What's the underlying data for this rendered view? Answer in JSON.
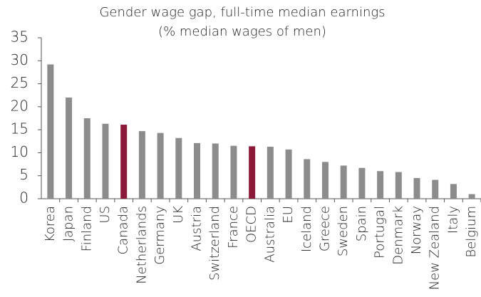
{
  "chart_data": {
    "type": "bar",
    "title": "Gender wage gap, full-time median earnings",
    "subtitle": "(% median wages of men)",
    "categories": [
      "Korea",
      "Japan",
      "Finland",
      "US",
      "Canada",
      "Netherlands",
      "Germany",
      "UK",
      "Austria",
      "Switzerland",
      "France",
      "OECD",
      "Australia",
      "EU",
      "Iceland",
      "Greece",
      "Sweden",
      "Spain",
      "Portugal",
      "Denmark",
      "Norway",
      "New Zealand",
      "Italy",
      "Belgium"
    ],
    "values": [
      29.2,
      22,
      17.5,
      16.3,
      16.1,
      14.7,
      14.3,
      13.2,
      12.1,
      12,
      11.5,
      11.4,
      11.3,
      10.7,
      8.6,
      8,
      7.2,
      6.7,
      6,
      5.8,
      4.5,
      4.1,
      3.2,
      1
    ],
    "colors": [
      "#8c8c8c",
      "#8c8c8c",
      "#8c8c8c",
      "#8c8c8c",
      "#8b1a3a",
      "#8c8c8c",
      "#8c8c8c",
      "#8c8c8c",
      "#8c8c8c",
      "#8c8c8c",
      "#8c8c8c",
      "#8b1a3a",
      "#8c8c8c",
      "#8c8c8c",
      "#8c8c8c",
      "#8c8c8c",
      "#8c8c8c",
      "#8c8c8c",
      "#8c8c8c",
      "#8c8c8c",
      "#8c8c8c",
      "#8c8c8c",
      "#8c8c8c",
      "#8c8c8c"
    ],
    "ylim": [
      0,
      35
    ],
    "yticks": [
      0,
      5,
      10,
      15,
      20,
      25,
      30,
      35
    ],
    "grid": false
  }
}
